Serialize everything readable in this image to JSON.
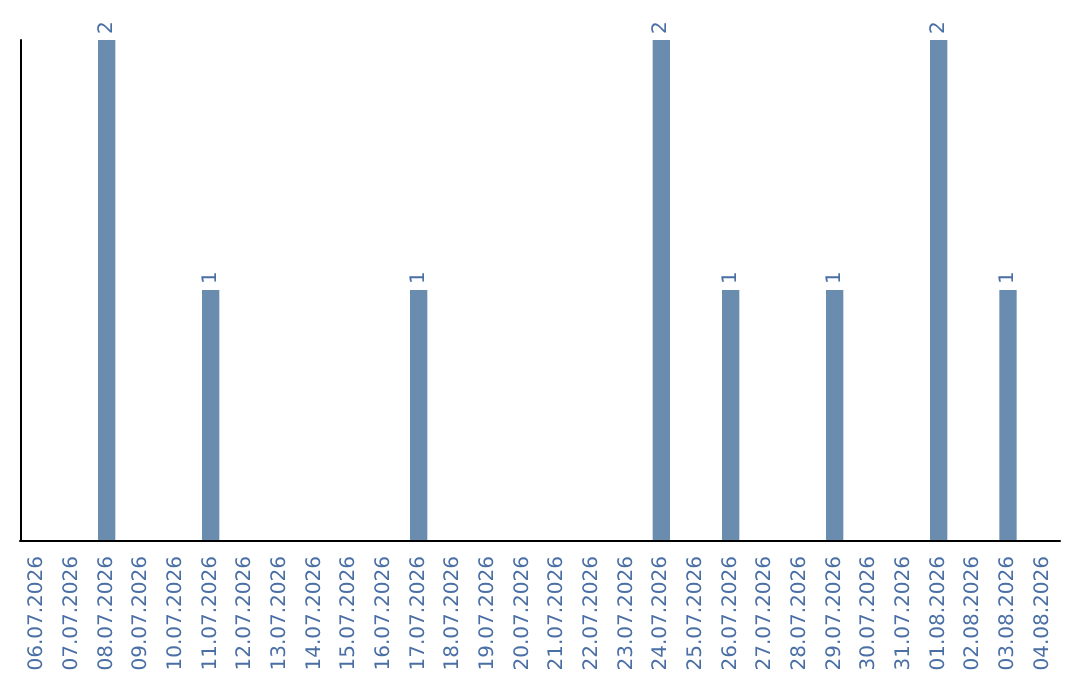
{
  "chart_data": {
    "type": "bar",
    "categories": [
      "06.07.2026",
      "07.07.2026",
      "08.07.2026",
      "09.07.2026",
      "10.07.2026",
      "11.07.2026",
      "12.07.2026",
      "13.07.2026",
      "14.07.2026",
      "15.07.2026",
      "16.07.2026",
      "17.07.2026",
      "18.07.2026",
      "19.07.2026",
      "20.07.2026",
      "21.07.2026",
      "22.07.2026",
      "23.07.2026",
      "24.07.2026",
      "25.07.2026",
      "26.07.2026",
      "27.07.2026",
      "28.07.2026",
      "29.07.2026",
      "30.07.2026",
      "31.07.2026",
      "01.08.2026",
      "02.08.2026",
      "03.08.2026",
      "04.08.2026"
    ],
    "values": [
      0,
      0,
      2,
      0,
      0,
      1,
      0,
      0,
      0,
      0,
      0,
      1,
      0,
      0,
      0,
      0,
      0,
      0,
      2,
      0,
      1,
      0,
      0,
      1,
      0,
      0,
      2,
      0,
      1,
      0
    ],
    "value_labels": [
      null,
      null,
      "2",
      null,
      null,
      "1",
      null,
      null,
      null,
      null,
      null,
      "1",
      null,
      null,
      null,
      null,
      null,
      null,
      "2",
      null,
      "1",
      null,
      null,
      "1",
      null,
      null,
      "2",
      null,
      "1",
      null
    ],
    "color": "#6a8caf",
    "tick_labels": "x"
  }
}
